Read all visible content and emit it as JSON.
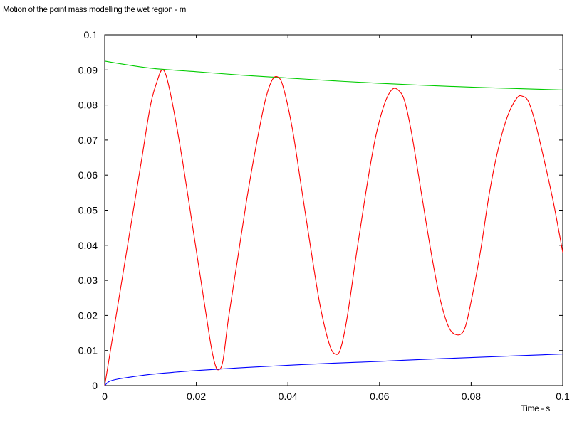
{
  "chart_data": {
    "type": "line",
    "title": "Motion of the point mass modelling the wet region - m",
    "xlabel": "Time - s",
    "ylabel": "",
    "xlim": [
      0,
      0.1
    ],
    "ylim": [
      0,
      0.1
    ],
    "grid": false,
    "x_ticks": [
      "0",
      "0.02",
      "0.04",
      "0.06",
      "0.08",
      "0.1"
    ],
    "y_ticks": [
      "0",
      "0.01",
      "0.02",
      "0.03",
      "0.04",
      "0.05",
      "0.06",
      "0.07",
      "0.08",
      "0.09",
      "0.1"
    ],
    "series": [
      {
        "color": "#00cc00",
        "x": [
          0,
          0.01,
          0.02,
          0.03,
          0.04,
          0.05,
          0.06,
          0.07,
          0.08,
          0.09,
          0.1
        ],
        "y": [
          0.0925,
          0.0905,
          0.0895,
          0.0885,
          0.0877,
          0.0869,
          0.0862,
          0.0856,
          0.0851,
          0.0847,
          0.0843
        ]
      },
      {
        "color": "#ff0000",
        "x": [
          0,
          0.002,
          0.004,
          0.006,
          0.008,
          0.01,
          0.0115,
          0.0125,
          0.0135,
          0.015,
          0.017,
          0.019,
          0.021,
          0.023,
          0.024,
          0.0248,
          0.0258,
          0.027,
          0.029,
          0.031,
          0.033,
          0.035,
          0.0365,
          0.0378,
          0.039,
          0.041,
          0.043,
          0.045,
          0.047,
          0.049,
          0.0503,
          0.0515,
          0.053,
          0.055,
          0.057,
          0.059,
          0.061,
          0.0628,
          0.0643,
          0.0655,
          0.067,
          0.069,
          0.071,
          0.073,
          0.075,
          0.0768,
          0.0785,
          0.08,
          0.082,
          0.084,
          0.086,
          0.088,
          0.09,
          0.0912,
          0.0925,
          0.094,
          0.096,
          0.098,
          0.1
        ],
        "y": [
          0,
          0.016,
          0.032,
          0.048,
          0.064,
          0.08,
          0.087,
          0.09,
          0.088,
          0.079,
          0.064,
          0.047,
          0.03,
          0.013,
          0.0065,
          0.0045,
          0.007,
          0.019,
          0.036,
          0.053,
          0.068,
          0.081,
          0.087,
          0.088,
          0.085,
          0.073,
          0.056,
          0.039,
          0.023,
          0.012,
          0.009,
          0.0105,
          0.02,
          0.038,
          0.055,
          0.07,
          0.08,
          0.0845,
          0.084,
          0.081,
          0.072,
          0.056,
          0.04,
          0.026,
          0.017,
          0.0145,
          0.016,
          0.024,
          0.038,
          0.055,
          0.068,
          0.077,
          0.082,
          0.0825,
          0.081,
          0.075,
          0.064,
          0.052,
          0.038
        ]
      },
      {
        "color": "#0000ff",
        "x": [
          0,
          0.001,
          0.003,
          0.006,
          0.01,
          0.015,
          0.02,
          0.03,
          0.04,
          0.05,
          0.06,
          0.07,
          0.08,
          0.09,
          0.1
        ],
        "y": [
          0,
          0.0012,
          0.0019,
          0.0025,
          0.0032,
          0.0038,
          0.0043,
          0.0051,
          0.0058,
          0.0064,
          0.0069,
          0.0075,
          0.008,
          0.0085,
          0.009
        ]
      }
    ]
  }
}
